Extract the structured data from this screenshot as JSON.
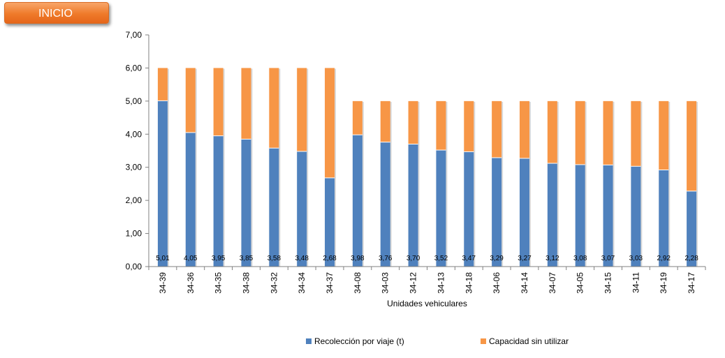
{
  "nav": {
    "inicio_label": "INICIO"
  },
  "colors": {
    "series_1": "#4f81bd",
    "series_2": "#f79646",
    "button": "#ef7a2a"
  },
  "chart_data": {
    "type": "bar",
    "stacked": true,
    "categories": [
      "34-39",
      "34-36",
      "34-35",
      "34-38",
      "34-32",
      "34-34",
      "34-37",
      "34-08",
      "34-03",
      "34-12",
      "34-13",
      "34-18",
      "34-06",
      "34-14",
      "34-07",
      "34-05",
      "34-15",
      "34-11",
      "34-19",
      "34-17"
    ],
    "series": [
      {
        "name": "Recolección por viaje (t)",
        "values": [
          5.01,
          4.05,
          3.95,
          3.85,
          3.58,
          3.48,
          2.68,
          3.98,
          3.76,
          3.7,
          3.52,
          3.47,
          3.29,
          3.27,
          3.12,
          3.08,
          3.07,
          3.03,
          2.92,
          2.28
        ]
      },
      {
        "name": "Capacidad sin utilizar",
        "values": [
          0.99,
          1.95,
          2.05,
          2.15,
          2.42,
          2.52,
          3.32,
          1.02,
          1.24,
          1.3,
          1.48,
          1.53,
          1.71,
          1.73,
          1.88,
          1.92,
          1.93,
          1.97,
          2.08,
          2.72
        ]
      }
    ],
    "data_labels": [
      "5,01",
      "4,05",
      "3,95",
      "3,85",
      "3,58",
      "3,48",
      "2,68",
      "3,98",
      "3,76",
      "3,70",
      "3,52",
      "3,47",
      "3,29",
      "3,27",
      "3,12",
      "3,08",
      "3,07",
      "3,03",
      "2,92",
      "2,28"
    ],
    "y_ticks": [
      "0,00",
      "1,00",
      "2,00",
      "3,00",
      "4,00",
      "5,00",
      "6,00",
      "7,00"
    ],
    "ylim": [
      0,
      7
    ],
    "xlabel": "Unidades vehiculares",
    "ylabel": "",
    "title": "",
    "grid": false,
    "legend_position": "bottom"
  }
}
